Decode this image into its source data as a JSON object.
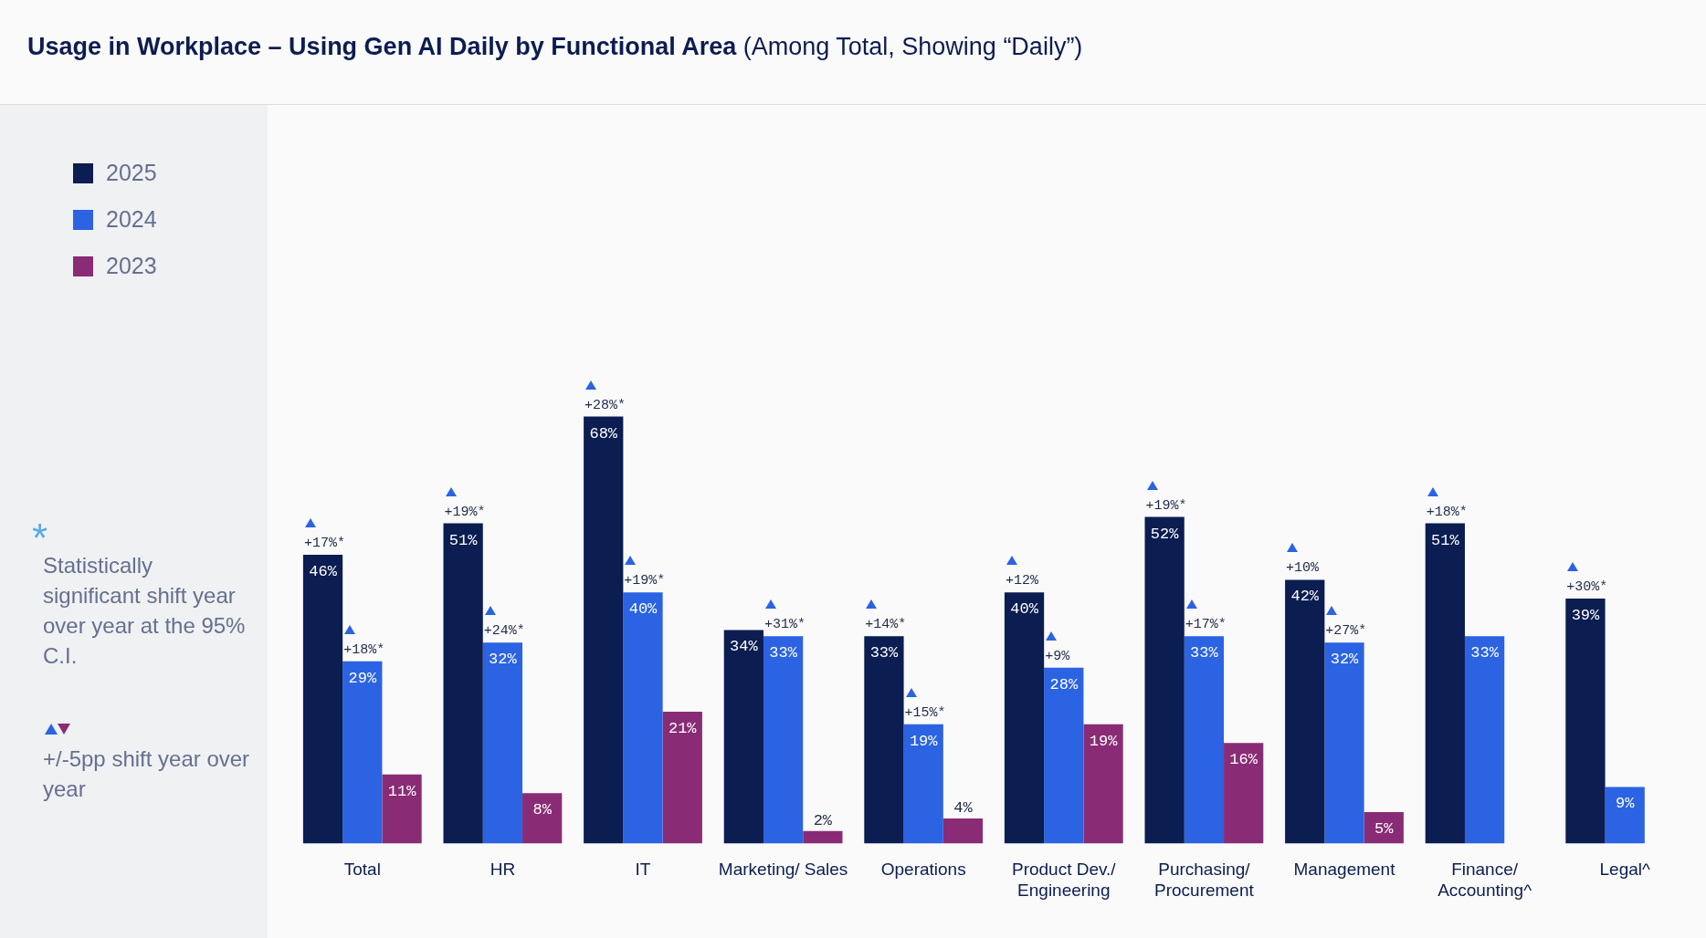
{
  "chart_data": {
    "type": "bar",
    "title": "Usage in Workplace – Using Gen AI Daily by Functional Area",
    "subtitle": "(Among Total, Showing “Daily”)",
    "categories": [
      "Total",
      "HR",
      "IT",
      "Marketing/ Sales",
      "Operations",
      "Product Dev./\nEngineering",
      "Purchasing/\nProcurement",
      "Management",
      "Finance/\nAccounting^",
      "Legal^"
    ],
    "series": [
      {
        "name": "2025",
        "color": "#0b1d51",
        "values": [
          46,
          51,
          68,
          34,
          33,
          40,
          52,
          42,
          51,
          39
        ],
        "value_labels": [
          "46%",
          "51%",
          "68%",
          "34%",
          "33%",
          "40%",
          "52%",
          "42%",
          "51%",
          "39%"
        ]
      },
      {
        "name": "2024",
        "color": "#2b63e3",
        "values": [
          29,
          32,
          40,
          33,
          19,
          28,
          33,
          32,
          33,
          9
        ],
        "value_labels": [
          "29%",
          "32%",
          "40%",
          "33%",
          "19%",
          "28%",
          "33%",
          "32%",
          "33%",
          "9%"
        ]
      },
      {
        "name": "2023",
        "color": "#8a2c75",
        "values": [
          11,
          8,
          21,
          2,
          4,
          19,
          16,
          5,
          null,
          null
        ],
        "value_labels": [
          "11%",
          "8%",
          "21%",
          "2%",
          "4%",
          "19%",
          "16%",
          "5%",
          null,
          null
        ]
      }
    ],
    "annotations": [
      "+17%*",
      "+19%*",
      "+28%*",
      "+14%*",
      "+12%",
      "+19%*",
      "+10%",
      "+18%*",
      "+30%*",
      {
        "text": "+18%*",
        "x": "Total",
        "y": 29
      },
      {
        "text": "+24%*",
        "x": "HR",
        "y": 32
      },
      {
        "text": "+19%*",
        "x": "IT",
        "y": 40
      },
      {
        "text": "+31%*",
        "x": "Marketing/ Sales",
        "y": 33
      },
      {
        "text": "+15%*",
        "x": "Operations",
        "y": 19
      },
      {
        "text": "+9%",
        "x": "Product Dev./\nEngineering",
        "y": 28
      },
      {
        "text": "+17%*",
        "x": "Purchasing/\nProcurement",
        "y": 33
      },
      {
        "text": "+27%*",
        "x": "Management",
        "y": 32
      },
      "*",
      "Statistically significant shift year over year at the 95% C.I.",
      "+/-5pp shift year over year"
    ],
    "legend": "left"
  }
}
